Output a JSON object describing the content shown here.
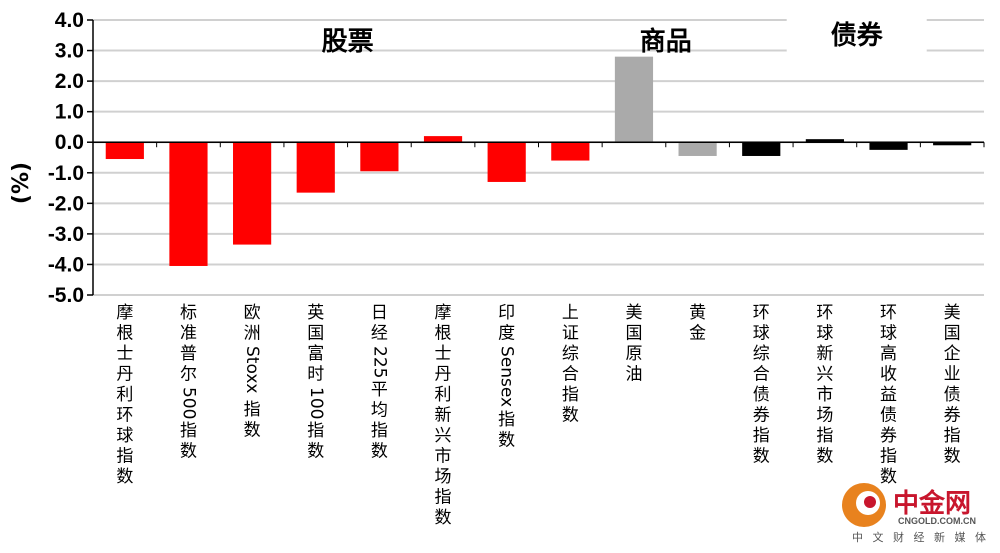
{
  "chart_data": {
    "type": "bar",
    "ylabel": "(%)",
    "ylim": [
      -5.0,
      4.0
    ],
    "yticks": [
      "4.0",
      "3.0",
      "2.0",
      "1.0",
      "0.0",
      "-1.0",
      "-2.0",
      "-3.0",
      "-4.0",
      "-5.0"
    ],
    "ytick_values": [
      4,
      3,
      2,
      1,
      0,
      -1,
      -2,
      -3,
      -4,
      -5
    ],
    "grid": true,
    "categories": [
      "摩根士丹利环球指数",
      "标准普尔 500 指数",
      "欧洲 Stoxx 指数",
      "英国富时 100 指数",
      "日经 225 平均指数",
      "摩根士丹利新兴市场指数",
      "印度 Sensex指数",
      "上证综合指数",
      "美国原油",
      "黄金",
      "环球综合债券指数",
      "环球新兴市场指数",
      "环球高收益债券指数",
      "美国企业债券指数"
    ],
    "values": [
      -0.55,
      -4.05,
      -3.35,
      -1.65,
      -0.95,
      0.2,
      -1.3,
      -0.6,
      2.8,
      -0.45,
      -0.45,
      0.1,
      -0.25,
      -0.1
    ],
    "bar_colors": [
      "#ff0000",
      "#ff0000",
      "#ff0000",
      "#ff0000",
      "#ff0000",
      "#ff0000",
      "#ff0000",
      "#ff0000",
      "#aaaaaa",
      "#aaaaaa",
      "#000000",
      "#000000",
      "#000000",
      "#000000"
    ],
    "groups": [
      {
        "label": "股票",
        "start": 0,
        "end": 7
      },
      {
        "label": "商品",
        "start": 8,
        "end": 9
      },
      {
        "label": "债券",
        "start": 10,
        "end": 13
      }
    ]
  },
  "watermark": {
    "brand": "中金网",
    "domain": "CNGOLD.COM.CN",
    "tagline": "中 文 财 经 新 媒 体",
    "logo_colors": [
      "#e8821e",
      "#c8162d"
    ]
  }
}
